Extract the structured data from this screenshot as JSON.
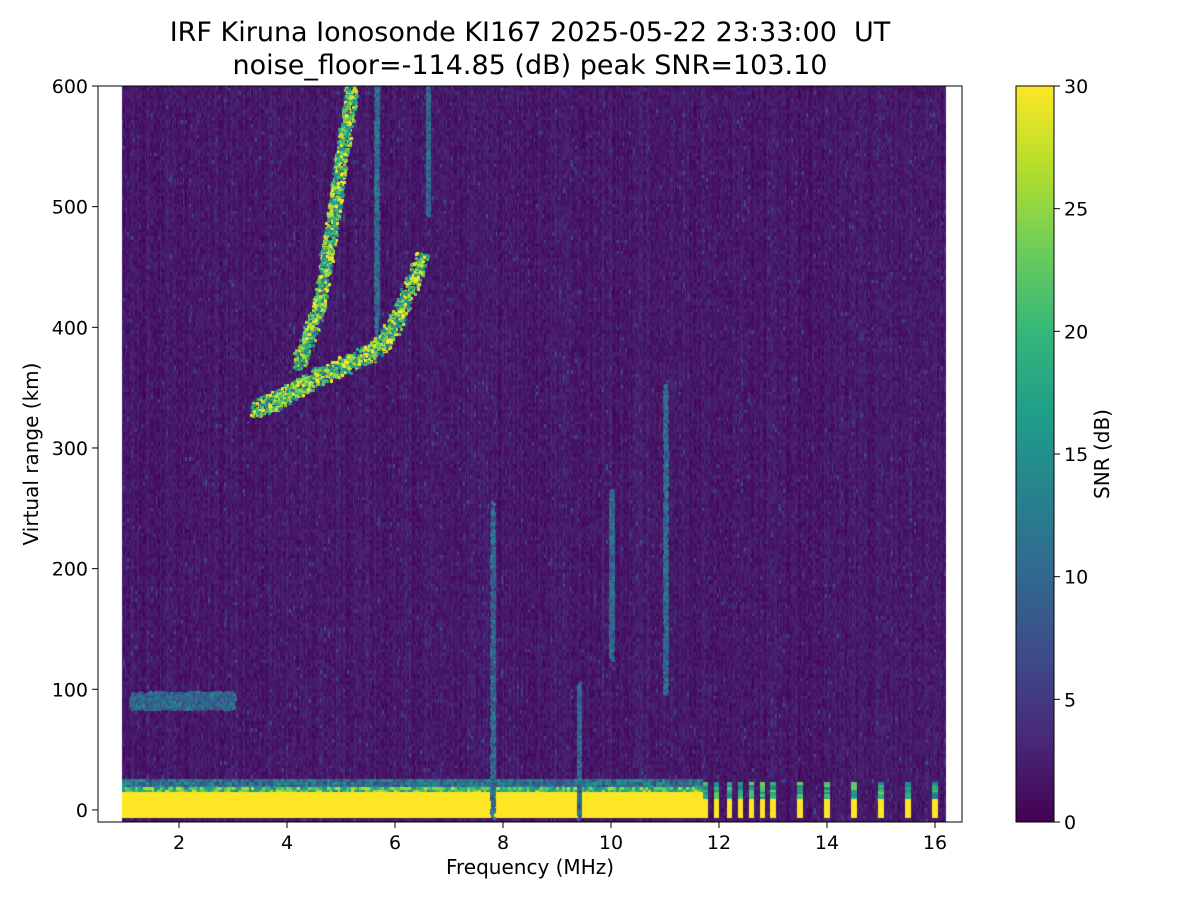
{
  "title_line1": "IRF Kiruna Ionosonde KI167 2025-05-22 23:33:00  UT",
  "title_line2": "noise_floor=-114.85 (dB) peak SNR=103.10",
  "chart_data": {
    "type": "heatmap",
    "title": "IRF Kiruna Ionosonde KI167 2025-05-22 23:33:00  UT\nnoise_floor=-114.85 (dB) peak SNR=103.10",
    "xlabel": "Frequency (MHz)",
    "ylabel": "Virtual range (km)",
    "colorbar_label": "SNR (dB)",
    "colormap": "viridis",
    "xlim": [
      0.5,
      16.5
    ],
    "ylim": [
      -10,
      600
    ],
    "clim": [
      0,
      30
    ],
    "xticks": [
      2,
      4,
      6,
      8,
      10,
      12,
      14,
      16
    ],
    "yticks": [
      0,
      100,
      200,
      300,
      400,
      500,
      600
    ],
    "cbar_ticks": [
      0,
      5,
      10,
      15,
      20,
      25,
      30
    ],
    "data_freq_range": [
      0.95,
      16.2
    ],
    "ground_echo": {
      "range_km": [
        -7,
        18
      ],
      "snr_db": 30,
      "freq_continuous_to": 11.7
    },
    "discrete_channels_mhz": [
      11.75,
      11.95,
      12.2,
      12.4,
      12.6,
      12.8,
      13.0,
      13.5,
      14.0,
      14.5,
      15.0,
      15.5,
      16.0
    ],
    "traces": [
      {
        "name": "F-layer lower edge",
        "points": [
          [
            3.4,
            333
          ],
          [
            3.8,
            340
          ],
          [
            4.1,
            347
          ],
          [
            4.5,
            358
          ],
          [
            5.0,
            368
          ],
          [
            5.5,
            378
          ],
          [
            5.8,
            390
          ],
          [
            6.0,
            405
          ],
          [
            6.2,
            425
          ],
          [
            6.5,
            460
          ]
        ]
      },
      {
        "name": "F-layer upper trace",
        "points": [
          [
            4.2,
            370
          ],
          [
            4.6,
            420
          ],
          [
            4.8,
            480
          ],
          [
            5.0,
            540
          ],
          [
            5.2,
            600
          ]
        ]
      },
      {
        "name": "vertical band 5.7 MHz",
        "points": [
          [
            5.65,
            400
          ],
          [
            5.65,
            600
          ]
        ]
      },
      {
        "name": "vertical band 6.6 MHz",
        "points": [
          [
            6.6,
            500
          ],
          [
            6.6,
            600
          ]
        ]
      },
      {
        "name": "low-range streak ~90 km",
        "points": [
          [
            1.1,
            91
          ],
          [
            3.0,
            91
          ]
        ]
      },
      {
        "name": "spike 7.8 MHz",
        "points": [
          [
            7.8,
            0
          ],
          [
            7.8,
            250
          ]
        ]
      },
      {
        "name": "spike 9.4 MHz",
        "points": [
          [
            9.4,
            0
          ],
          [
            9.4,
            100
          ]
        ]
      },
      {
        "name": "spike 10 MHz",
        "points": [
          [
            10.0,
            130
          ],
          [
            10.0,
            260
          ]
        ]
      },
      {
        "name": "spike 11 MHz",
        "points": [
          [
            11.0,
            100
          ],
          [
            11.0,
            350
          ]
        ]
      }
    ]
  }
}
